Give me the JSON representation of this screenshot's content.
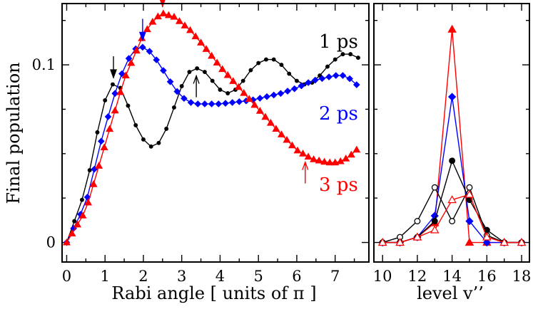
{
  "chart_data": [
    {
      "type": "line",
      "panel": "left",
      "xlabel": "Rabi angle [ units of π ]",
      "ylabel": "Final population",
      "xlim": [
        -0.12,
        7.88
      ],
      "ylim": [
        -0.011,
        0.1345
      ],
      "xticks": [
        0,
        1,
        2,
        3,
        4,
        5,
        6,
        7
      ],
      "xtick_labels": [
        "0",
        "1",
        "2",
        "3",
        "4",
        "5",
        "6",
        "7"
      ],
      "yticks": [
        0,
        0.1
      ],
      "ytick_labels": [
        "0",
        "0.1"
      ],
      "series": [
        {
          "name": "1 ps",
          "label": "1 ps",
          "color": "#000000",
          "marker": "circle",
          "points": [
            [
              0,
              0
            ],
            [
              0.5,
              0.03
            ],
            [
              0.8,
              0.062
            ],
            [
              1.0,
              0.08
            ],
            [
              1.2,
              0.089
            ],
            [
              1.4,
              0.087
            ],
            [
              1.6,
              0.077
            ],
            [
              1.8,
              0.066
            ],
            [
              2.0,
              0.058
            ],
            [
              2.2,
              0.054
            ],
            [
              2.4,
              0.056
            ],
            [
              2.6,
              0.064
            ],
            [
              2.8,
              0.076
            ],
            [
              3.0,
              0.088
            ],
            [
              3.2,
              0.096
            ],
            [
              3.4,
              0.098
            ],
            [
              3.6,
              0.096
            ],
            [
              3.8,
              0.091
            ],
            [
              4.0,
              0.086
            ],
            [
              4.2,
              0.084
            ],
            [
              4.4,
              0.086
            ],
            [
              4.6,
              0.091
            ],
            [
              4.8,
              0.097
            ],
            [
              5.0,
              0.101
            ],
            [
              5.2,
              0.103
            ],
            [
              5.4,
              0.103
            ],
            [
              5.6,
              0.1
            ],
            [
              5.8,
              0.095
            ],
            [
              6.0,
              0.091
            ],
            [
              6.2,
              0.089
            ],
            [
              6.4,
              0.09
            ],
            [
              6.6,
              0.094
            ],
            [
              6.8,
              0.099
            ],
            [
              7.0,
              0.103
            ],
            [
              7.2,
              0.106
            ],
            [
              7.4,
              0.106
            ],
            [
              7.6,
              0.104
            ]
          ]
        },
        {
          "name": "2 ps",
          "label": "2 ps",
          "color": "#0000ff",
          "marker": "diamond",
          "points": [
            [
              0,
              0
            ],
            [
              0.5,
              0.022
            ],
            [
              0.9,
              0.057
            ],
            [
              1.2,
              0.08
            ],
            [
              1.4,
              0.093
            ],
            [
              1.6,
              0.103
            ],
            [
              1.8,
              0.109
            ],
            [
              2.0,
              0.11
            ],
            [
              2.2,
              0.107
            ],
            [
              2.4,
              0.101
            ],
            [
              2.6,
              0.094
            ],
            [
              2.8,
              0.087
            ],
            [
              3.0,
              0.082
            ],
            [
              3.2,
              0.079
            ],
            [
              3.4,
              0.078
            ],
            [
              3.6,
              0.078
            ],
            [
              4.0,
              0.078
            ],
            [
              4.4,
              0.079
            ],
            [
              4.8,
              0.08
            ],
            [
              5.2,
              0.082
            ],
            [
              5.6,
              0.084
            ],
            [
              6.0,
              0.087
            ],
            [
              6.4,
              0.091
            ],
            [
              6.8,
              0.093
            ],
            [
              7.0,
              0.094
            ],
            [
              7.2,
              0.094
            ],
            [
              7.4,
              0.092
            ],
            [
              7.6,
              0.088
            ]
          ]
        },
        {
          "name": "3 ps",
          "label": "3 ps",
          "color": "#ff0000",
          "marker": "triangle",
          "points": [
            [
              0,
              0
            ],
            [
              0.5,
              0.018
            ],
            [
              1.0,
              0.055
            ],
            [
              1.5,
              0.092
            ],
            [
              2.0,
              0.117
            ],
            [
              2.3,
              0.126
            ],
            [
              2.5,
              0.129
            ],
            [
              2.8,
              0.127
            ],
            [
              3.2,
              0.12
            ],
            [
              3.6,
              0.11
            ],
            [
              4.0,
              0.099
            ],
            [
              4.5,
              0.087
            ],
            [
              5.0,
              0.075
            ],
            [
              5.5,
              0.063
            ],
            [
              6.0,
              0.052
            ],
            [
              6.4,
              0.047
            ],
            [
              6.8,
              0.045
            ],
            [
              7.0,
              0.045
            ],
            [
              7.2,
              0.046
            ],
            [
              7.4,
              0.049
            ],
            [
              7.6,
              0.053
            ]
          ]
        }
      ],
      "arrows": [
        {
          "x": 1.22,
          "series": "1 ps",
          "color": "#000000",
          "style": "filled"
        },
        {
          "x": 3.38,
          "series": "1 ps",
          "color": "#000000",
          "style": "open"
        },
        {
          "x": 1.98,
          "series": "2 ps",
          "color": "#0000ff",
          "style": "filled"
        },
        {
          "x": 2.5,
          "series": "3 ps",
          "color": "#ff0000",
          "style": "filled"
        },
        {
          "x": 6.22,
          "series": "3 ps",
          "color": "#ff0000",
          "style": "open"
        }
      ]
    },
    {
      "type": "line",
      "panel": "right",
      "xlabel": "level v’’",
      "xlim": [
        9.5,
        18.45
      ],
      "ylim": [
        -0.011,
        0.1345
      ],
      "xticks": [
        10,
        12,
        14,
        16,
        18
      ],
      "xtick_labels": [
        "10",
        "12",
        "14",
        "16",
        "18"
      ],
      "series": [
        {
          "name": "3 ps filled",
          "color": "#ff0000",
          "marker": "triangle",
          "filled": true,
          "x": [
            10,
            11,
            12,
            13,
            14,
            15,
            16,
            17,
            18
          ],
          "values": [
            0,
            0,
            0.003,
            0.011,
            0.12,
            0,
            0,
            0,
            0
          ]
        },
        {
          "name": "2 ps filled",
          "color": "#0000ff",
          "marker": "diamond",
          "filled": true,
          "x": [
            10,
            11,
            12,
            13,
            14,
            15,
            16,
            17,
            18
          ],
          "values": [
            0,
            0,
            0.003,
            0.015,
            0.082,
            0.012,
            0,
            0,
            0
          ]
        },
        {
          "name": "1 ps filled",
          "color": "#000000",
          "marker": "circle",
          "filled": true,
          "x": [
            10,
            11,
            12,
            13,
            14,
            15,
            16,
            17,
            18
          ],
          "values": [
            0,
            0,
            0.003,
            0.012,
            0.046,
            0.024,
            0.007,
            0,
            0
          ]
        },
        {
          "name": "1 ps open",
          "color": "#000000",
          "marker": "circle",
          "filled": false,
          "x": [
            10,
            11,
            12,
            13,
            14,
            15,
            16,
            17,
            18
          ],
          "values": [
            0,
            0.003,
            0.012,
            0.031,
            0.012,
            0.031,
            0.004,
            0,
            0
          ]
        },
        {
          "name": "3 ps open",
          "color": "#ff0000",
          "marker": "triangle",
          "filled": false,
          "x": [
            10,
            11,
            12,
            13,
            14,
            15,
            16,
            17,
            18
          ],
          "values": [
            0,
            0,
            0.003,
            0.007,
            0.024,
            0.027,
            0.003,
            0,
            0
          ]
        }
      ]
    }
  ]
}
